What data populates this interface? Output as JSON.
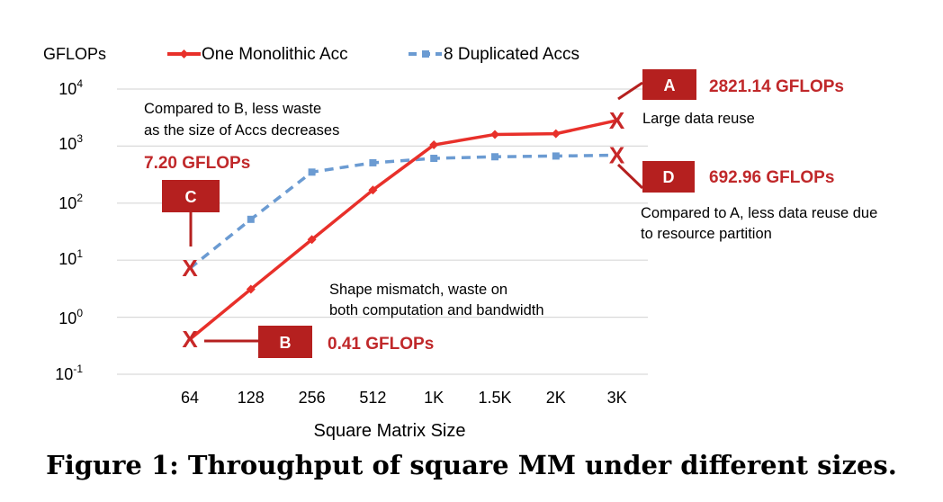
{
  "caption": "Figure 1: Throughput of square MM under different sizes.",
  "chart_data": {
    "type": "line",
    "title": "",
    "ylabel": "GFLOPs",
    "xlabel": "Square Matrix Size",
    "y_scale": "log",
    "ylim": [
      0.1,
      10000
    ],
    "y_ticks": [
      {
        "base": "10",
        "exp": "-1",
        "value": 0.1
      },
      {
        "base": "10",
        "exp": "0",
        "value": 1
      },
      {
        "base": "10",
        "exp": "1",
        "value": 10
      },
      {
        "base": "10",
        "exp": "2",
        "value": 100
      },
      {
        "base": "10",
        "exp": "3",
        "value": 1000
      },
      {
        "base": "10",
        "exp": "4",
        "value": 10000
      }
    ],
    "grid": true,
    "legend_position": "top",
    "categories": [
      "64",
      "128",
      "256",
      "512",
      "1K",
      "1.5K",
      "2K",
      "3K"
    ],
    "series": [
      {
        "name": "One Monolithic Acc",
        "color": "#e8302a",
        "dash": false,
        "values": [
          0.41,
          3.1,
          23,
          170,
          1050,
          1600,
          1650,
          2821.14
        ]
      },
      {
        "name": "8 Duplicated Accs",
        "color": "#6b9bd2",
        "dash": true,
        "values": [
          7.2,
          52,
          350,
          510,
          610,
          650,
          670,
          692.96
        ]
      }
    ],
    "annotations": [
      {
        "id": "A",
        "value_label": "2821.14 GFLOPs",
        "note": [
          "Large data reuse"
        ]
      },
      {
        "id": "B",
        "value_label": "0.41 GFLOPs",
        "note": [
          "Shape mismatch, waste on",
          "both computation and bandwidth"
        ]
      },
      {
        "id": "C",
        "value_label": "7.20 GFLOPs",
        "note": [
          "Compared to B, less waste",
          "as the size of Accs decreases"
        ]
      },
      {
        "id": "D",
        "value_label": "692.96 GFLOPs",
        "note": [
          "Compared to A, less data reuse due",
          "to resource partition"
        ]
      }
    ],
    "colors": {
      "annotation_red": "#c0282a",
      "box_red": "#b5201f",
      "marker_red": "#c82828",
      "grid": "#d9d9d9"
    }
  }
}
